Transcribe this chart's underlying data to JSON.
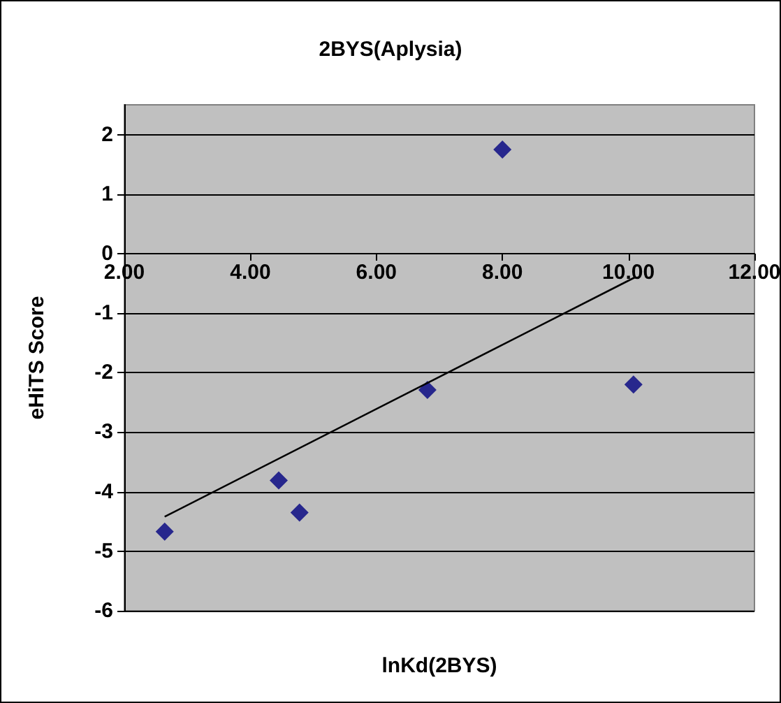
{
  "chart_data": {
    "type": "scatter",
    "title": "2BYS(Aplysia)",
    "xlabel": "lnKd(2BYS)",
    "ylabel": "eHiTS Score",
    "series": [
      {
        "color": "#000080",
        "x": [
          2.64,
          4.45,
          4.78,
          6.81,
          8.0,
          10.08
        ],
        "values": [
          -4.67,
          -3.81,
          -4.35,
          -2.29,
          1.75,
          -2.2
        ]
      },
      {
        "type": "line",
        "color": "#000000",
        "marker": "none",
        "x": [
          2.64,
          10.1
        ],
        "values": [
          -4.42,
          -0.4
        ]
      }
    ],
    "xlim": [
      2,
      12
    ],
    "ylim": [
      -6,
      2.5
    ],
    "xticks": [
      {
        "value": 2,
        "label": "2.00"
      },
      {
        "value": 4,
        "label": "4.00"
      },
      {
        "value": 6,
        "label": "6.00"
      },
      {
        "value": 8,
        "label": "8.00"
      },
      {
        "value": 10,
        "label": "10.00"
      },
      {
        "value": 12,
        "label": "12.00"
      }
    ],
    "yticks": [
      -6,
      -5,
      -4,
      -3,
      -2,
      -1,
      0,
      1,
      2
    ],
    "grid": "y",
    "marker": "diamond"
  }
}
